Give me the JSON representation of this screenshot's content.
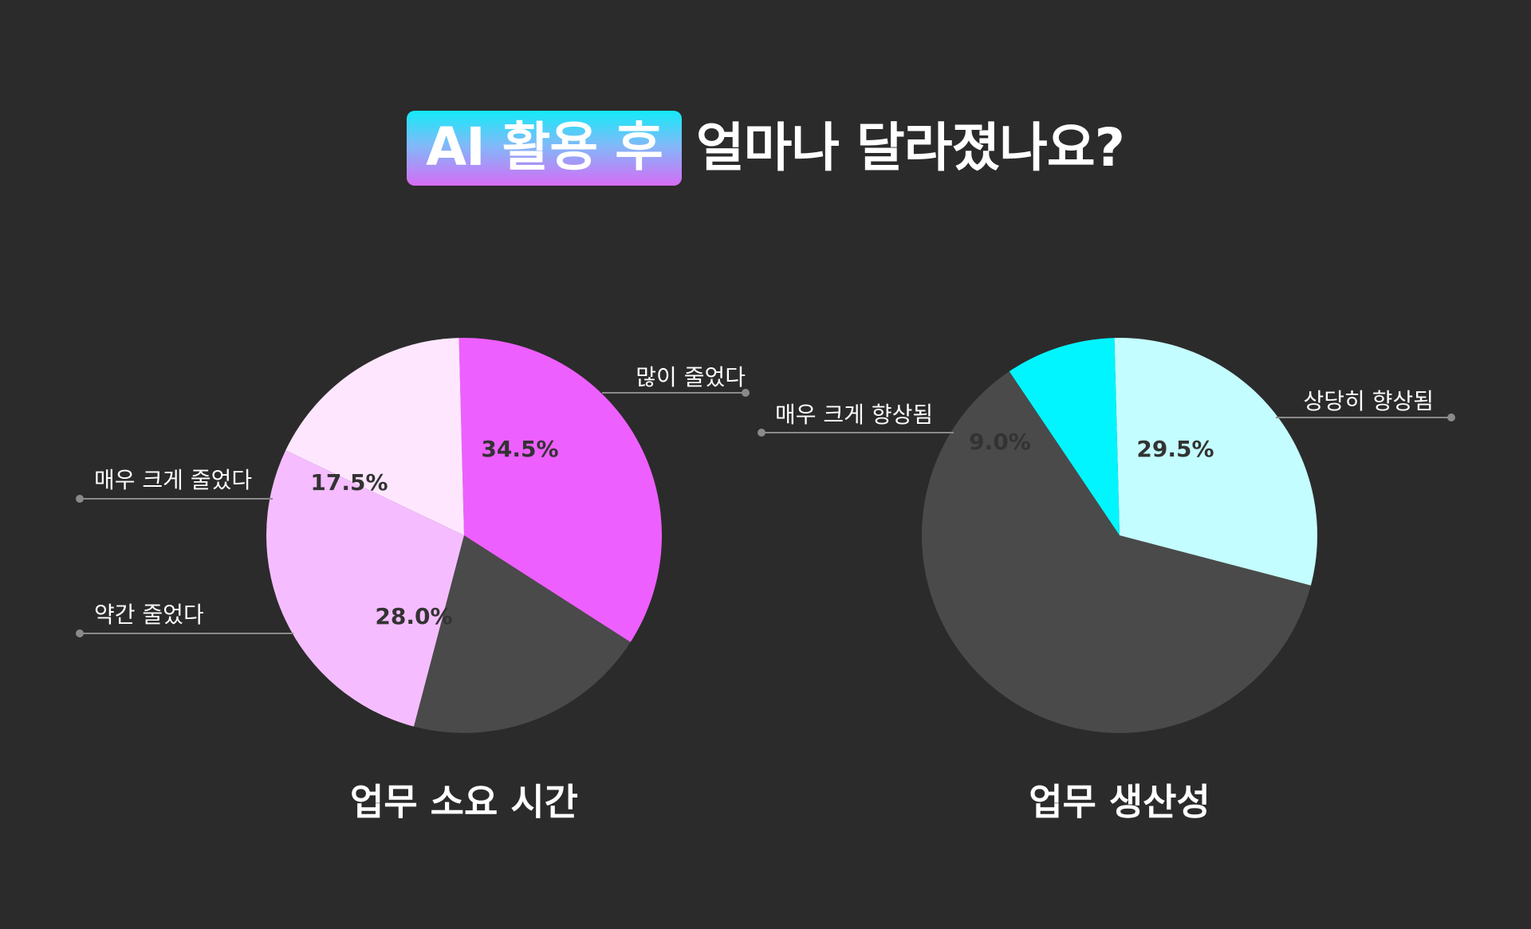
{
  "title": {
    "highlight": "AI 활용 후",
    "rest": "얼마나 달라졌나요?"
  },
  "colors": {
    "background": "#2b2b2b",
    "remainder": "#4a4a4a",
    "highlight_gradient": [
      "#14eaf8",
      "#d66cf6"
    ]
  },
  "chart_data": [
    {
      "type": "pie",
      "title": "업무 소요 시간",
      "slices": [
        {
          "label": "많이 줄었다",
          "value": 34.5,
          "display": "34.5%",
          "color": "#ee5fff",
          "callout_side": "right"
        },
        {
          "label": "매우 크게 줄었다",
          "value": 17.5,
          "display": "17.5%",
          "color": "#ffe6ff",
          "callout_side": "left"
        },
        {
          "label": "약간 줄었다",
          "value": 28.0,
          "display": "28.0%",
          "color": "#f5bdff",
          "callout_side": "left"
        },
        {
          "label": "",
          "value": 20.0,
          "display": "",
          "color": "#4a4a4a",
          "callout_side": ""
        }
      ]
    },
    {
      "type": "pie",
      "title": "업무 생산성",
      "slices": [
        {
          "label": "상당히 향상됨",
          "value": 29.5,
          "display": "29.5%",
          "color": "#c4fdff",
          "callout_side": "right"
        },
        {
          "label": "매우 크게 향상됨",
          "value": 9.0,
          "display": "9.0%",
          "color": "#00f5ff",
          "callout_side": "left"
        },
        {
          "label": "",
          "value": 61.5,
          "display": "",
          "color": "#4a4a4a",
          "callout_side": ""
        }
      ]
    }
  ]
}
